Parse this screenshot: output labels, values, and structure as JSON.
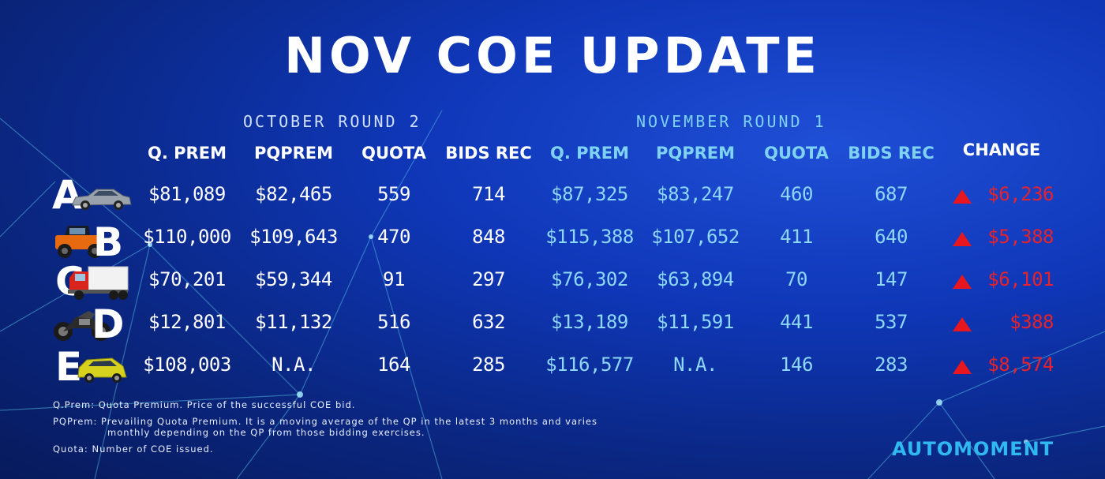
{
  "title": "NOV COE UPDATE",
  "rounds": {
    "previous": "OCTOBER ROUND 2",
    "current": "NOVEMBER ROUND 1"
  },
  "headers": {
    "q_prem": "Q. PREM",
    "pqprem": "PQPREM",
    "quota": "QUOTA",
    "bids_rec": "BIDS REC",
    "change": "CHANGE"
  },
  "rows": [
    {
      "category": "A",
      "vehicle_icon": "sedan-car-icon",
      "oct": {
        "q_prem": "$81,089",
        "pqprem": "$82,465",
        "quota": "559",
        "bids_rec": "714"
      },
      "nov": {
        "q_prem": "$87,325",
        "pqprem": "$83,247",
        "quota": "460",
        "bids_rec": "687"
      },
      "change": "$6,236"
    },
    {
      "category": "B",
      "vehicle_icon": "jeep-icon",
      "oct": {
        "q_prem": "$110,000",
        "pqprem": "$109,643",
        "quota": "470",
        "bids_rec": "848"
      },
      "nov": {
        "q_prem": "$115,388",
        "pqprem": "$107,652",
        "quota": "411",
        "bids_rec": "640"
      },
      "change": "$5,388"
    },
    {
      "category": "C",
      "vehicle_icon": "truck-icon",
      "oct": {
        "q_prem": "$70,201",
        "pqprem": "$59,344",
        "quota": "91",
        "bids_rec": "297"
      },
      "nov": {
        "q_prem": "$76,302",
        "pqprem": "$63,894",
        "quota": "70",
        "bids_rec": "147"
      },
      "change": "$6,101"
    },
    {
      "category": "D",
      "vehicle_icon": "motorcycle-icon",
      "oct": {
        "q_prem": "$12,801",
        "pqprem": "$11,132",
        "quota": "516",
        "bids_rec": "632"
      },
      "nov": {
        "q_prem": "$13,189",
        "pqprem": "$11,591",
        "quota": "441",
        "bids_rec": "537"
      },
      "change": "$388"
    },
    {
      "category": "E",
      "vehicle_icon": "hatchback-car-icon",
      "oct": {
        "q_prem": "$108,003",
        "pqprem": "N.A.",
        "quota": "164",
        "bids_rec": "285"
      },
      "nov": {
        "q_prem": "$116,577",
        "pqprem": "N.A.",
        "quota": "146",
        "bids_rec": "283"
      },
      "change": "$8,574"
    }
  ],
  "notes": {
    "qprem": "Q.Prem: Quota Premium. Price of the successful COE bid.",
    "pqprem_line1": "PQPrem: Prevailing Quota Premium. It is a moving average of the QP in the latest 3 months and varies",
    "pqprem_line2": "monthly depending on the QP from those bidding exercises.",
    "quota": "Quota: Number of COE issued."
  },
  "logo": "AUTOMOMENT",
  "colors": {
    "background": "#0f37b8",
    "current_round_text": "#8ed8f5",
    "change_text": "#e8222a",
    "logo": "#2fb9f0"
  }
}
